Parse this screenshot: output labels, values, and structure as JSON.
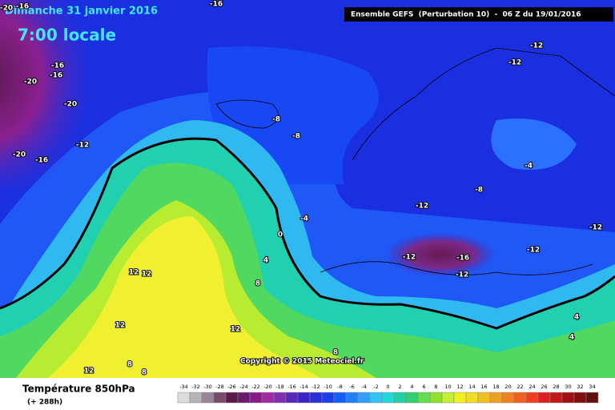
{
  "header": {
    "date": "Dimanche 31 janvier 2016",
    "time": "7:00 locale",
    "model": "Ensemble GEFS  (Perturbation 10)  -  06 Z du 19/01/2016"
  },
  "copyright": "Copyright © 2015 Meteociel.fr",
  "contour_labels": [
    -20,
    -16,
    -16,
    -16,
    -16,
    -20,
    -20,
    -12,
    -20,
    -16,
    -8,
    -8,
    -12,
    -12,
    -4,
    -8,
    -12,
    -4,
    0,
    -12,
    -12,
    -16,
    -12,
    -12,
    4,
    8,
    12,
    12,
    12,
    12,
    4,
    4,
    8,
    8,
    12,
    8
  ],
  "footer": {
    "variable": "Température 850hPa",
    "lead": "(+ 288h)",
    "scale": {
      "values": [
        -34,
        -32,
        -30,
        -28,
        -26,
        -24,
        -22,
        -20,
        -18,
        -16,
        -14,
        -12,
        -10,
        -8,
        -6,
        -4,
        -2,
        0,
        2,
        4,
        6,
        8,
        10,
        12,
        14,
        16,
        18,
        20,
        22,
        24,
        26,
        28,
        30,
        32,
        34
      ],
      "colors": [
        "#dcdcdc",
        "#b4b4b4",
        "#9a849a",
        "#7a4a6a",
        "#5a1a4a",
        "#6a1a6a",
        "#8a1a8a",
        "#a02aa0",
        "#8030b0",
        "#5a28b8",
        "#3a24c8",
        "#2a30d8",
        "#1a40ec",
        "#1460ff",
        "#2080ff",
        "#30a0ff",
        "#30c4f4",
        "#20d8d8",
        "#20d0a4",
        "#30d070",
        "#60e050",
        "#90e030",
        "#c4f030",
        "#f0f020",
        "#f0dc20",
        "#f0c020",
        "#f0a020",
        "#f08020",
        "#f06020",
        "#f04020",
        "#e02020",
        "#c01818",
        "#a01010",
        "#801010",
        "#601010"
      ]
    }
  }
}
